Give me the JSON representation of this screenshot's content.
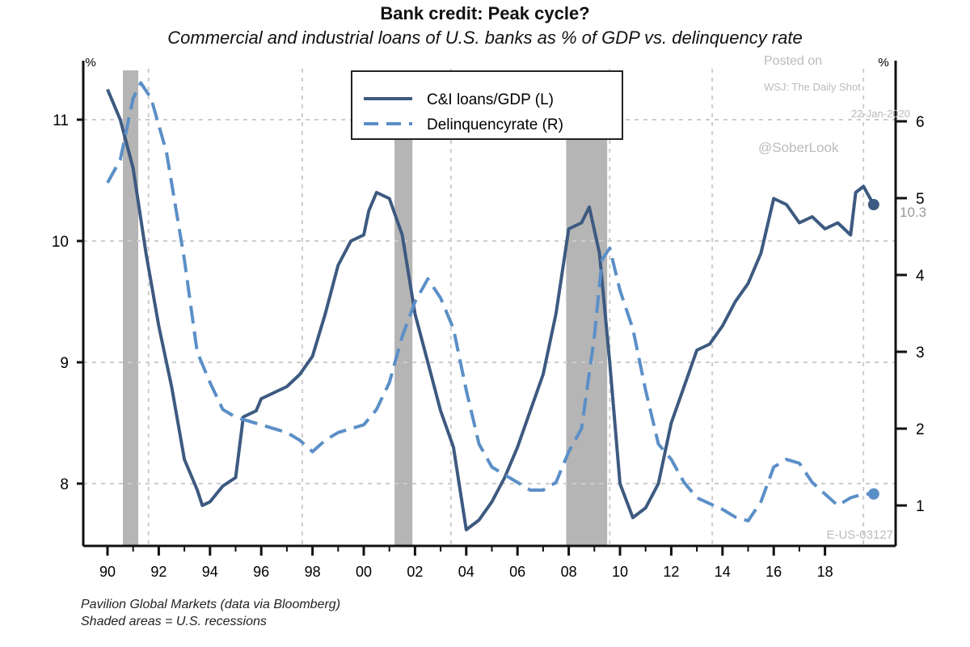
{
  "chart_data": {
    "type": "line",
    "title": "Bank credit: Peak cycle?",
    "subtitle": "Commercial and industrial loans of U.S. banks as % of GDP vs. delinquency rate",
    "ylabel_left": "%",
    "ylabel_right": "%",
    "ylim_left": [
      7.5,
      11.5
    ],
    "ylim_right": [
      0.5,
      6.8
    ],
    "xlim": [
      1989.5,
      2020.7
    ],
    "left_ticks": [
      8,
      9,
      10,
      11
    ],
    "right_ticks": [
      1,
      2,
      3,
      4,
      5,
      6
    ],
    "x_ticks": [
      1990,
      1992,
      1994,
      1996,
      1998,
      2000,
      2002,
      2004,
      2006,
      2008,
      2010,
      2012,
      2014,
      2016,
      2018
    ],
    "x_tick_labels": [
      "90",
      "92",
      "94",
      "96",
      "98",
      "00",
      "02",
      "04",
      "06",
      "08",
      "10",
      "12",
      "14",
      "16",
      "18"
    ],
    "grid": "dotted",
    "recessions": [
      [
        1990.6,
        1991.2
      ],
      [
        2001.2,
        2001.9
      ],
      [
        2007.9,
        2009.5
      ]
    ],
    "legend_position": "top-center",
    "series": [
      {
        "name": "C&I loans/GDP (L)",
        "axis": "left",
        "style": "solid",
        "color": "#3d5a80",
        "x": [
          1990,
          1990.5,
          1991,
          1991.5,
          1992,
          1992.5,
          1993,
          1993.5,
          1993.7,
          1994,
          1994.5,
          1995,
          1995.3,
          1995.8,
          1996,
          1996.5,
          1997,
          1997.5,
          1998,
          1998.5,
          1999,
          1999.5,
          2000,
          2000.2,
          2000.5,
          2001,
          2001.5,
          2002,
          2002.5,
          2003,
          2003.5,
          2004,
          2004.5,
          2005,
          2005.5,
          2006,
          2006.5,
          2007,
          2007.5,
          2008,
          2008.5,
          2008.8,
          2009.2,
          2009.6,
          2010,
          2010.5,
          2011,
          2011.5,
          2012,
          2012.5,
          2013,
          2013.5,
          2014,
          2014.5,
          2015,
          2015.5,
          2016,
          2016.5,
          2017,
          2017.5,
          2018,
          2018.5,
          2019,
          2019.2,
          2019.5,
          2019.9
        ],
        "values": [
          11.25,
          11.0,
          10.6,
          9.9,
          9.3,
          8.8,
          8.2,
          7.95,
          7.82,
          7.85,
          7.98,
          8.05,
          8.55,
          8.6,
          8.7,
          8.75,
          8.8,
          8.9,
          9.05,
          9.4,
          9.8,
          10.0,
          10.05,
          10.25,
          10.4,
          10.35,
          10.05,
          9.4,
          9.0,
          8.6,
          8.3,
          7.62,
          7.7,
          7.85,
          8.05,
          8.3,
          8.6,
          8.9,
          9.4,
          10.1,
          10.15,
          10.28,
          9.9,
          9.0,
          8.0,
          7.72,
          7.8,
          8.0,
          8.5,
          8.8,
          9.1,
          9.15,
          9.3,
          9.5,
          9.65,
          9.9,
          10.35,
          10.3,
          10.15,
          10.2,
          10.1,
          10.15,
          10.05,
          10.4,
          10.45,
          10.3
        ]
      },
      {
        "name": "Delinquencyrate (R)",
        "axis": "right",
        "style": "dashed",
        "color": "#5b8fc7",
        "x": [
          1990,
          1990.5,
          1991,
          1991.3,
          1991.7,
          1992.3,
          1993,
          1993.5,
          1994,
          1994.5,
          1995,
          1996,
          1997,
          1997.5,
          1998,
          1998.5,
          1999,
          2000,
          2000.5,
          2001,
          2001.5,
          2002,
          2002.5,
          2003,
          2003.5,
          2004,
          2004.5,
          2005,
          2005.5,
          2006,
          2006.5,
          2007,
          2007.5,
          2008,
          2008.5,
          2009,
          2009.3,
          2009.6,
          2010,
          2010.5,
          2011,
          2011.5,
          2012,
          2012.5,
          2013,
          2014,
          2014.5,
          2015,
          2015.5,
          2016,
          2016.5,
          2017,
          2017.5,
          2018,
          2018.5,
          2019,
          2019.5,
          2019.9
        ],
        "values": [
          5.2,
          5.5,
          6.3,
          6.5,
          6.3,
          5.6,
          4.2,
          3.0,
          2.6,
          2.25,
          2.15,
          2.05,
          1.95,
          1.85,
          1.7,
          1.85,
          1.95,
          2.05,
          2.25,
          2.6,
          3.2,
          3.65,
          3.95,
          3.7,
          3.3,
          2.5,
          1.8,
          1.5,
          1.4,
          1.3,
          1.2,
          1.2,
          1.3,
          1.7,
          2.0,
          3.2,
          4.2,
          4.35,
          3.8,
          3.3,
          2.5,
          1.8,
          1.6,
          1.3,
          1.1,
          0.95,
          0.85,
          0.8,
          1.05,
          1.5,
          1.6,
          1.55,
          1.3,
          1.15,
          1.0,
          1.1,
          1.15,
          1.15
        ]
      }
    ],
    "annotations": {
      "last_value_label": "10.3"
    }
  },
  "watermark": {
    "posted": "Posted on",
    "source": "WSJ: The Daily Shot",
    "date": "22-Jan-2020",
    "handle": "@SoberLook",
    "code": "E-US-03127"
  },
  "footnotes": [
    "Pavilion Global Markets (data via Bloomberg)",
    "Shaded areas = U.S. recessions"
  ]
}
